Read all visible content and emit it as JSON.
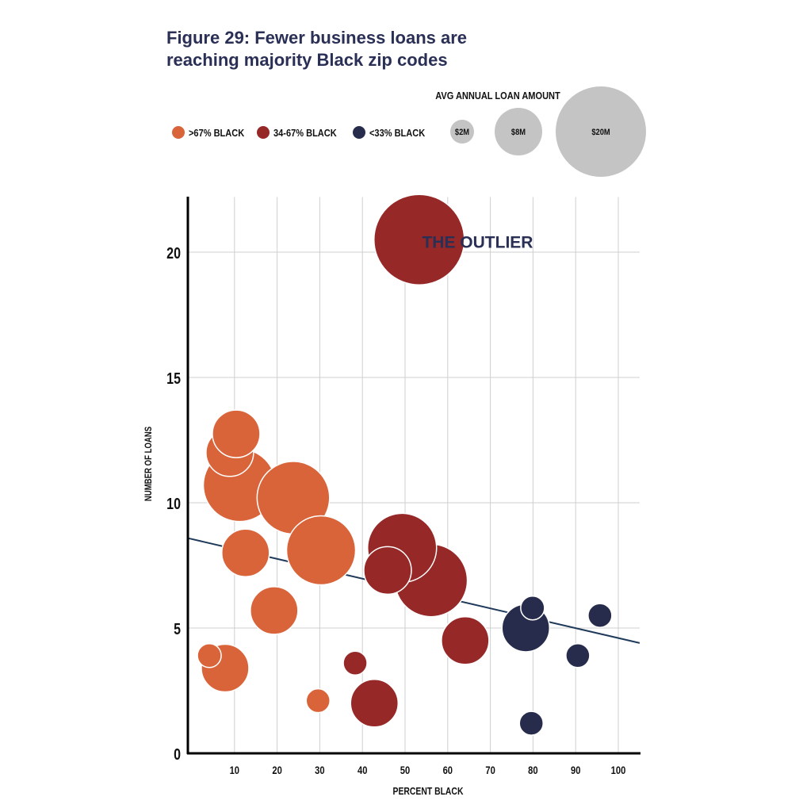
{
  "title_line1": "Figure 29: Fewer business loans are",
  "title_line2": "reaching majority Black zip codes",
  "chart_data": {
    "type": "scatter",
    "subtype": "bubble",
    "title": "Figure 29: Fewer business loans are reaching majority Black zip codes",
    "xlabel": "PERCENT BLACK",
    "ylabel": "NUMBER OF LOANS",
    "xlim": [
      -1,
      105
    ],
    "ylim": [
      0,
      22.2
    ],
    "xticks": [
      10,
      20,
      30,
      40,
      50,
      60,
      70,
      80,
      90,
      100
    ],
    "yticks": [
      0,
      5,
      10,
      15,
      20
    ],
    "grid": true,
    "size_legend": {
      "title": "AVG ANNUAL LOAN AMOUNT",
      "items": [
        {
          "label": "$2M",
          "value": 2
        },
        {
          "label": "$8M",
          "value": 8
        },
        {
          "label": "$20M",
          "value": 20
        }
      ]
    },
    "series": [
      {
        "name": ">67% BLACK",
        "color": "#d9643a",
        "points": [
          {
            "x": 11.2,
            "y": 10.7,
            "size": 15
          },
          {
            "x": 8.9,
            "y": 12.0,
            "size": 8
          },
          {
            "x": 10.4,
            "y": 12.75,
            "size": 8
          },
          {
            "x": 23.8,
            "y": 10.2,
            "size": 15
          },
          {
            "x": 12.6,
            "y": 8.0,
            "size": 8
          },
          {
            "x": 30.3,
            "y": 8.1,
            "size": 14
          },
          {
            "x": 19.3,
            "y": 5.7,
            "size": 8
          },
          {
            "x": 4.1,
            "y": 3.9,
            "size": 2
          },
          {
            "x": 7.8,
            "y": 3.4,
            "size": 8
          },
          {
            "x": 29.6,
            "y": 2.1,
            "size": 2
          }
        ]
      },
      {
        "name": "34-67% BLACK",
        "color": "#962828",
        "points": [
          {
            "x": 53.3,
            "y": 20.5,
            "size": 20
          },
          {
            "x": 49.3,
            "y": 8.2,
            "size": 14
          },
          {
            "x": 56.1,
            "y": 6.9,
            "size": 15
          },
          {
            "x": 45.9,
            "y": 7.3,
            "size": 8
          },
          {
            "x": 64.1,
            "y": 4.5,
            "size": 8
          },
          {
            "x": 38.3,
            "y": 3.6,
            "size": 2
          },
          {
            "x": 42.8,
            "y": 2.0,
            "size": 8
          }
        ]
      },
      {
        "name": "<33% BLACK",
        "color": "#272c4d",
        "points": [
          {
            "x": 78.3,
            "y": 5.0,
            "size": 8
          },
          {
            "x": 79.9,
            "y": 5.8,
            "size": 2
          },
          {
            "x": 95.7,
            "y": 5.5,
            "size": 2
          },
          {
            "x": 90.5,
            "y": 3.9,
            "size": 2
          },
          {
            "x": 79.6,
            "y": 1.2,
            "size": 2
          }
        ]
      }
    ],
    "trendline": {
      "intercept": 8.55,
      "slope": -0.0395,
      "color": "#1f3a5a"
    },
    "annotations": [
      {
        "text": "THE OUTLIER",
        "x": 67,
        "y": 20.3,
        "color": "#2a2f55"
      }
    ],
    "size_legend_color": "#c4c4c4"
  }
}
